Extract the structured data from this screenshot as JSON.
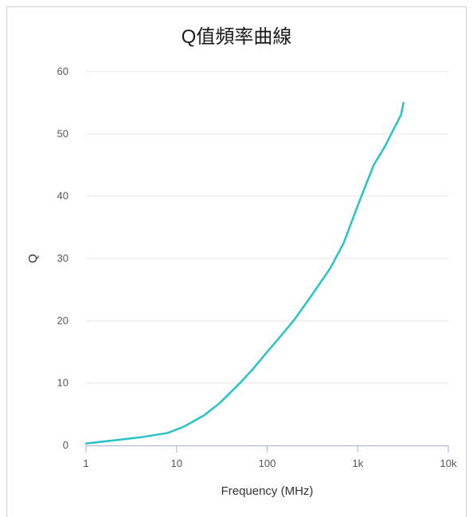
{
  "chart_data": {
    "type": "line",
    "title": "Q值頻率曲線",
    "xlabel": "Frequency (MHz)",
    "ylabel": "Q",
    "x_scale": "log",
    "xlim": [
      1,
      10000
    ],
    "ylim": [
      0,
      60
    ],
    "x_ticks": [
      "1",
      "10",
      "100",
      "1k",
      "10k"
    ],
    "y_ticks": [
      "0",
      "10",
      "20",
      "30",
      "40",
      "50",
      "60"
    ],
    "grid": true,
    "legend": "none",
    "series": [
      {
        "color": "#26c2c6",
        "x": [
          1,
          2,
          4,
          8,
          12,
          20,
          30,
          50,
          70,
          100,
          150,
          200,
          300,
          500,
          700,
          1000,
          1500,
          2000,
          2500,
          3000,
          3200
        ],
        "y": [
          0.3,
          0.8,
          1.3,
          2.0,
          3.0,
          4.8,
          6.8,
          10.0,
          12.3,
          15.0,
          18.0,
          20.2,
          23.8,
          28.5,
          32.5,
          38.5,
          45.0,
          48.0,
          50.8,
          53.0,
          55.0
        ]
      }
    ]
  }
}
